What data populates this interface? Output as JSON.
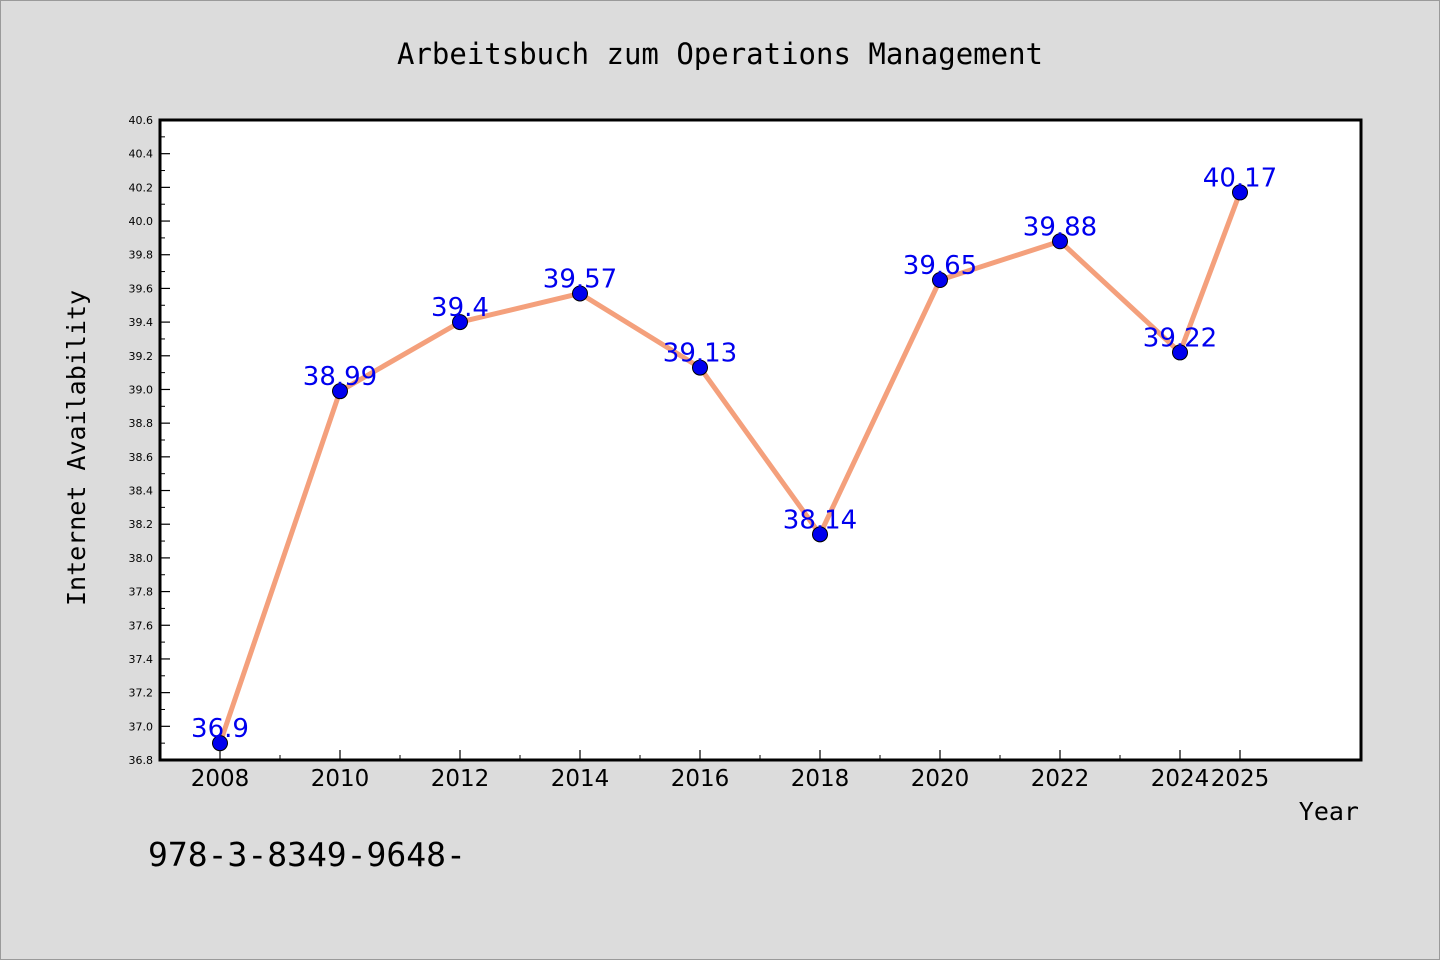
{
  "chart_data": {
    "type": "line",
    "title": "Arbeitsbuch zum Operations Management",
    "xlabel": "Year",
    "ylabel": "Internet Availability",
    "x": [
      "2008",
      "2010",
      "2012",
      "2014",
      "2016",
      "2018",
      "2020",
      "2022",
      "2024",
      "2025"
    ],
    "series": [
      {
        "values": [
          36.9,
          38.99,
          39.4,
          39.57,
          39.13,
          38.14,
          39.65,
          39.88,
          39.22,
          40.17
        ],
        "labels": [
          "36.9",
          "38.99",
          "39.4",
          "39.57",
          "39.13",
          "38.14",
          "39.65",
          "39.88",
          "39.22",
          "40.17"
        ],
        "line_color": "#f4a07c",
        "marker_color": "#0000ee"
      }
    ],
    "ylim": [
      36.8,
      40.6
    ],
    "yticks": [
      "36.8",
      "37.0",
      "37.2",
      "37.4",
      "37.6",
      "37.8",
      "38.0",
      "38.2",
      "38.4",
      "38.6",
      "38.8",
      "39.0",
      "39.2",
      "39.4",
      "39.6",
      "39.8",
      "40.0",
      "40.2",
      "40.4",
      "40.6"
    ],
    "grid": false,
    "legend": "none",
    "footnote": "978-3-8349-9648-"
  }
}
